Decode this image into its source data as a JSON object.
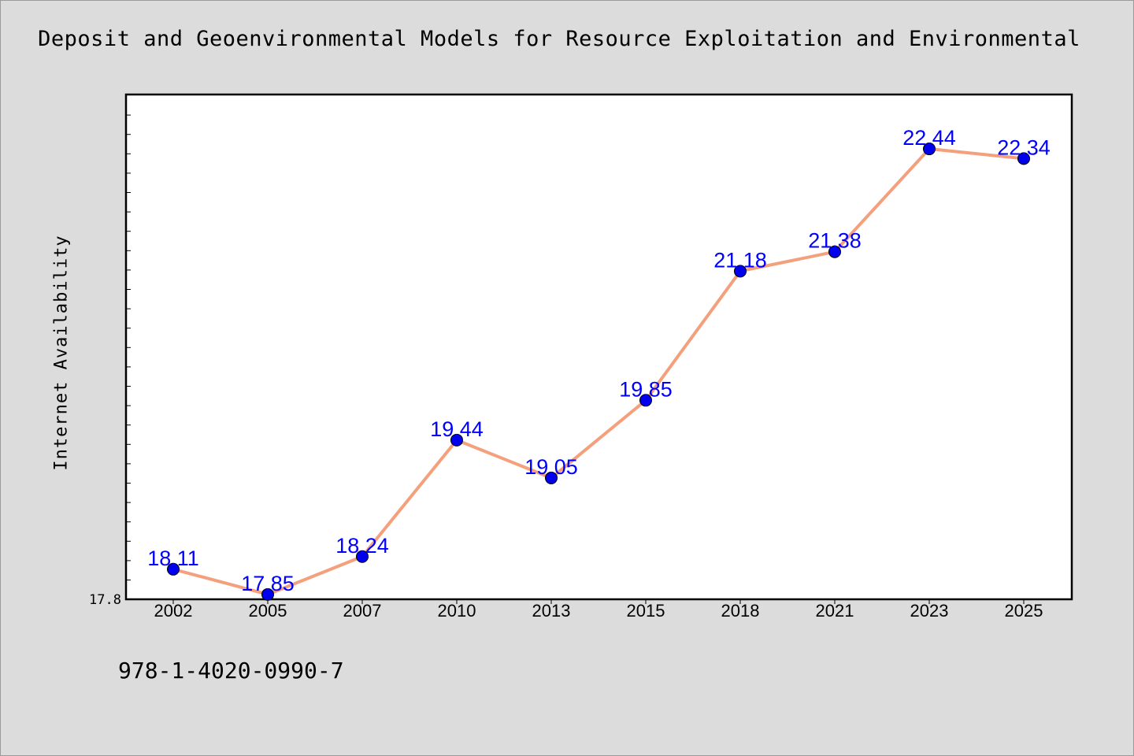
{
  "chart_data": {
    "type": "line",
    "title": "Deposit and Geoenvironmental Models for Resource Exploitation and Environmental",
    "ylabel": "Internet Availability",
    "xlabel": "",
    "categories": [
      "2002",
      "2005",
      "2007",
      "2010",
      "2013",
      "2015",
      "2018",
      "2021",
      "2023",
      "2025"
    ],
    "values": [
      18.11,
      17.85,
      18.24,
      19.44,
      19.05,
      19.85,
      21.18,
      21.38,
      22.44,
      22.34
    ],
    "value_labels": [
      "18.11",
      "17.85",
      "18.24",
      "19.44",
      "19.05",
      "19.85",
      "21.18",
      "21.38",
      "22.44",
      "22.34"
    ],
    "y_tick_label": "17.8",
    "ylim": [
      17.8,
      23.0
    ],
    "grid": false,
    "line_color": "#f4a07c",
    "marker_color": "#0000ee",
    "label_color": "#0000ff"
  },
  "footer": {
    "code": "978-1-4020-0990-7"
  }
}
